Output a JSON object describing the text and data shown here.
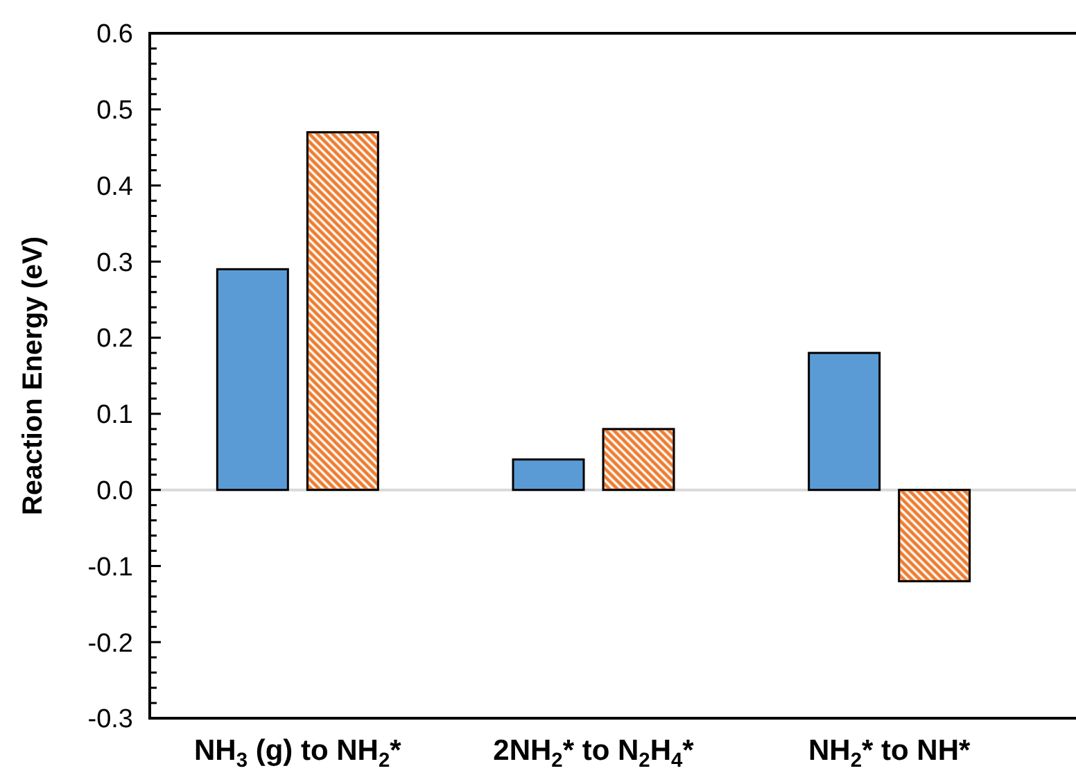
{
  "chart_data": {
    "type": "bar",
    "ylabel": "Reaction Energy (eV)",
    "categories": [
      "NH$_{3}$ (g) to NH$_{2}$*",
      "2NH$_{2}$* to N$_{2}$H$_{4}$*",
      "NH$_{2}$* to NH*"
    ],
    "series": [
      {
        "color": "#5b9bd5",
        "values": [
          0.29,
          0.04,
          0.18
        ]
      },
      {
        "color": "#ed7d31",
        "values": [
          0.47,
          0.08,
          -0.12
        ]
      }
    ],
    "ylim": [
      -0.3,
      0.6
    ],
    "yticks": [
      {
        "value": -0.3,
        "label": "-0.3"
      },
      {
        "value": -0.28,
        "label": null
      },
      {
        "value": -0.26,
        "label": null
      },
      {
        "value": -0.24,
        "label": null
      },
      {
        "value": -0.22,
        "label": null
      },
      {
        "value": -0.2,
        "label": "-0.2"
      },
      {
        "value": -0.18,
        "label": null
      },
      {
        "value": -0.16,
        "label": null
      },
      {
        "value": -0.14,
        "label": null
      },
      {
        "value": -0.12,
        "label": null
      },
      {
        "value": -0.1,
        "label": "-0.1"
      },
      {
        "value": -0.08,
        "label": null
      },
      {
        "value": -0.06,
        "label": null
      },
      {
        "value": -0.04,
        "label": null
      },
      {
        "value": -0.02,
        "label": null
      },
      {
        "value": 0,
        "label": "0.0"
      },
      {
        "value": 0.02,
        "label": null
      },
      {
        "value": 0.04,
        "label": null
      },
      {
        "value": 0.06,
        "label": null
      },
      {
        "value": 0.08,
        "label": null
      },
      {
        "value": 0.1,
        "label": "0.1"
      },
      {
        "value": 0.12,
        "label": null
      },
      {
        "value": 0.14,
        "label": null
      },
      {
        "value": 0.16,
        "label": null
      },
      {
        "value": 0.18,
        "label": null
      },
      {
        "value": 0.2,
        "label": "0.2"
      },
      {
        "value": 0.22,
        "label": null
      },
      {
        "value": 0.24,
        "label": null
      },
      {
        "value": 0.26,
        "label": null
      },
      {
        "value": 0.28,
        "label": null
      },
      {
        "value": 0.3,
        "label": "0.3"
      },
      {
        "value": 0.32,
        "label": null
      },
      {
        "value": 0.34,
        "label": null
      },
      {
        "value": 0.36,
        "label": null
      },
      {
        "value": 0.38,
        "label": null
      },
      {
        "value": 0.4,
        "label": "0.4"
      },
      {
        "value": 0.42,
        "label": null
      },
      {
        "value": 0.44,
        "label": null
      },
      {
        "value": 0.46,
        "label": null
      },
      {
        "value": 0.48,
        "label": null
      },
      {
        "value": 0.5,
        "label": "0.5"
      },
      {
        "value": 0.52,
        "label": null
      },
      {
        "value": 0.54,
        "label": null
      },
      {
        "value": 0.56,
        "label": null
      },
      {
        "value": 0.58,
        "label": null
      },
      {
        "value": 0.6,
        "label": "0.6"
      }
    ],
    "ref_lines": [
      {
        "axis": "y",
        "value": 0,
        "color": "#d9d9d9"
      }
    ]
  }
}
